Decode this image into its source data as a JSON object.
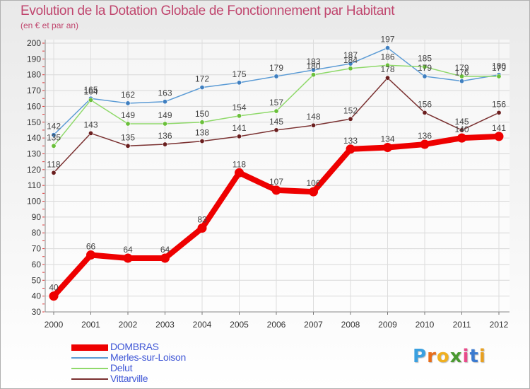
{
  "title": "Evolution de la Dotation Globale de Fonctionnement par Habitant",
  "subtitle": "(en € et par an)",
  "logo": {
    "text": "Proxiti",
    "letters": [
      "P",
      "r",
      "o",
      "x",
      "i",
      "t",
      "i"
    ],
    "colors": [
      "#3aa0e0",
      "#e86d1a",
      "#f0b020",
      "#4a9a30",
      "#e84a8a",
      "#3a7ad0",
      "#e8a020"
    ]
  },
  "chart_data": {
    "type": "line",
    "title": "Evolution de la Dotation Globale de Fonctionnement par Habitant",
    "subtitle": "(en € et par an)",
    "xlabel": "",
    "ylabel": "",
    "ylim": [
      30,
      200
    ],
    "yticks": [
      30,
      40,
      50,
      60,
      70,
      80,
      90,
      100,
      110,
      120,
      130,
      140,
      150,
      160,
      170,
      180,
      190,
      200
    ],
    "grid": true,
    "x": [
      "2000",
      "2001",
      "2002",
      "2003",
      "2004",
      "2005",
      "2006",
      "2007",
      "2008",
      "2009",
      "2010",
      "2011",
      "2012"
    ],
    "series": [
      {
        "name": "Merles-sur-Loison",
        "color": "#5b9bd5",
        "marker": "#3f7fc0",
        "values": [
          142,
          165,
          162,
          163,
          172,
          175,
          179,
          183,
          187,
          197,
          179,
          176,
          180
        ]
      },
      {
        "name": "Delut",
        "color": "#8fd96a",
        "marker": "#6abf3a",
        "values": [
          135,
          164,
          149,
          149,
          150,
          154,
          157,
          180,
          184,
          186,
          185,
          179,
          179
        ]
      },
      {
        "name": "Vittarville",
        "color": "#7a3030",
        "marker": "#6a1e1e",
        "values": [
          118,
          143,
          135,
          136,
          138,
          141,
          145,
          148,
          152,
          178,
          156,
          145,
          156
        ]
      },
      {
        "name": "DOMBRAS",
        "color": "#ee0000",
        "marker": "#ee0000",
        "values": [
          40,
          66,
          64,
          64,
          83,
          118,
          107,
          106,
          133,
          134,
          136,
          140,
          141
        ]
      }
    ],
    "legend": [
      "DOMBRAS",
      "Merles-sur-Loison",
      "Delut",
      "Vittarville"
    ],
    "legend_position": "bottom-left"
  }
}
